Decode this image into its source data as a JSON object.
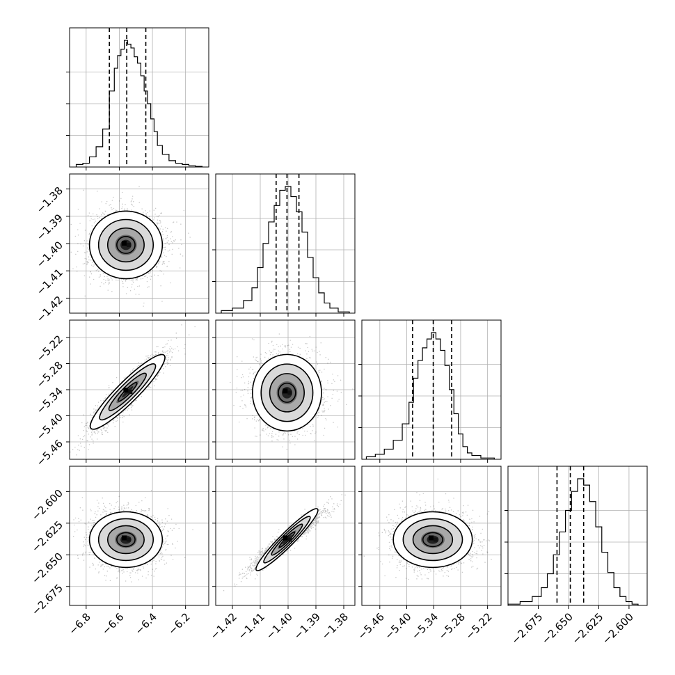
{
  "figure": {
    "type": "corner-plot",
    "panel_count": 10
  },
  "chart_data": [
    {
      "type": "histogram",
      "panel": "diag-0",
      "parameter_index": 0,
      "x": [
        -6.84,
        -6.8,
        -6.76,
        -6.72,
        -6.68,
        -6.64,
        -6.62,
        -6.6,
        -6.58,
        -6.56,
        -6.54,
        -6.52,
        -6.5,
        -6.48,
        -6.46,
        -6.44,
        -6.42,
        -6.4,
        -6.38,
        -6.36,
        -6.32,
        -6.28,
        -6.24,
        -6.2,
        -6.16,
        -6.12
      ],
      "values": [
        0.02,
        0.03,
        0.08,
        0.16,
        0.3,
        0.6,
        0.78,
        0.88,
        0.93,
        1.0,
        0.97,
        0.94,
        0.87,
        0.82,
        0.72,
        0.6,
        0.5,
        0.38,
        0.28,
        0.17,
        0.1,
        0.05,
        0.03,
        0.02,
        0.01,
        0.005
      ],
      "xlim": [
        -6.9,
        -6.06
      ],
      "quantiles": [
        -6.66,
        -6.555,
        -6.44
      ],
      "grid": true
    },
    {
      "type": "histogram",
      "panel": "diag-1",
      "parameter_index": 1,
      "x": [
        -1.422,
        -1.418,
        -1.414,
        -1.412,
        -1.41,
        -1.408,
        -1.406,
        -1.404,
        -1.402,
        -1.4,
        -1.398,
        -1.396,
        -1.394,
        -1.392,
        -1.39,
        -1.388,
        -1.386,
        -1.384,
        -1.38
      ],
      "values": [
        0.02,
        0.04,
        0.1,
        0.2,
        0.36,
        0.55,
        0.72,
        0.85,
        0.97,
        1.0,
        0.92,
        0.8,
        0.64,
        0.44,
        0.28,
        0.16,
        0.08,
        0.04,
        0.01
      ],
      "xlim": [
        -1.426,
        -1.376
      ],
      "quantiles": [
        -1.4043,
        -1.4004,
        -1.3961
      ],
      "grid": true
    },
    {
      "type": "histogram",
      "panel": "diag-2",
      "parameter_index": 2,
      "x": [
        -5.48,
        -5.46,
        -5.44,
        -5.42,
        -5.4,
        -5.39,
        -5.38,
        -5.37,
        -5.36,
        -5.35,
        -5.34,
        -5.33,
        -5.32,
        -5.31,
        -5.3,
        -5.29,
        -5.28,
        -5.27,
        -5.26,
        -5.25,
        -5.22
      ],
      "values": [
        0.02,
        0.04,
        0.08,
        0.15,
        0.28,
        0.45,
        0.64,
        0.78,
        0.88,
        0.95,
        1.0,
        0.95,
        0.86,
        0.74,
        0.55,
        0.36,
        0.2,
        0.1,
        0.05,
        0.03,
        0.01
      ],
      "xlim": [
        -5.5,
        -5.19
      ],
      "quantiles": [
        -5.387,
        -5.341,
        -5.3
      ],
      "grid": true
    },
    {
      "type": "histogram",
      "panel": "diag-3",
      "parameter_index": 3,
      "x": [
        -2.695,
        -2.685,
        -2.675,
        -2.67,
        -2.665,
        -2.66,
        -2.655,
        -2.65,
        -2.645,
        -2.64,
        -2.635,
        -2.63,
        -2.625,
        -2.62,
        -2.615,
        -2.61,
        -2.605,
        -2.6,
        -2.595
      ],
      "values": [
        0.01,
        0.03,
        0.07,
        0.14,
        0.25,
        0.4,
        0.58,
        0.75,
        0.9,
        1.0,
        0.95,
        0.82,
        0.62,
        0.42,
        0.26,
        0.14,
        0.07,
        0.03,
        0.01
      ],
      "xlim": [
        -2.7,
        -2.585
      ],
      "quantiles": [
        -2.6595,
        -2.6485,
        -2.6375
      ],
      "grid": true
    },
    {
      "type": "scatter-density",
      "panel": "pair-1-0",
      "x_parameter": 0,
      "y_parameter": 1,
      "xlim": [
        -6.9,
        -6.06
      ],
      "ylim": [
        -1.4255,
        -1.3745
      ],
      "center": [
        -6.56,
        -1.4005
      ],
      "sigma": [
        0.11,
        0.0062
      ],
      "correlation": 0.0,
      "contour_levels": [
        0.5,
        1.0,
        1.5,
        2.0
      ],
      "grid": true
    },
    {
      "type": "scatter-density",
      "panel": "pair-2-0",
      "x_parameter": 0,
      "y_parameter": 2,
      "xlim": [
        -6.9,
        -6.06
      ],
      "ylim": [
        -5.5,
        -5.18
      ],
      "center": [
        -6.55,
        -5.345
      ],
      "sigma": [
        0.11,
        0.044
      ],
      "correlation": 0.92,
      "contour_levels": [
        0.5,
        1.0,
        1.5,
        2.0
      ],
      "grid": true
    },
    {
      "type": "scatter-density",
      "panel": "pair-2-1",
      "x_parameter": 1,
      "y_parameter": 2,
      "xlim": [
        -1.426,
        -1.376
      ],
      "ylim": [
        -5.5,
        -5.18
      ],
      "center": [
        -1.4004,
        -5.347
      ],
      "sigma": [
        0.0062,
        0.044
      ],
      "correlation": 0.0,
      "contour_levels": [
        0.5,
        1.0,
        1.5,
        2.0
      ],
      "grid": true
    },
    {
      "type": "scatter-density",
      "panel": "pair-3-0",
      "x_parameter": 0,
      "y_parameter": 3,
      "xlim": [
        -6.9,
        -6.06
      ],
      "ylim": [
        -2.69,
        -2.58
      ],
      "center": [
        -6.56,
        -2.638
      ],
      "sigma": [
        0.11,
        0.011
      ],
      "correlation": 0.0,
      "contour_levels": [
        0.5,
        1.0,
        1.5,
        2.0
      ],
      "grid": true
    },
    {
      "type": "scatter-density",
      "panel": "pair-3-1",
      "x_parameter": 1,
      "y_parameter": 3,
      "xlim": [
        -1.426,
        -1.376
      ],
      "ylim": [
        -2.69,
        -2.58
      ],
      "center": [
        -1.4004,
        -2.638
      ],
      "sigma": [
        0.0062,
        0.011
      ],
      "correlation": 0.95,
      "contour_levels": [
        0.5,
        1.0,
        1.5,
        2.0
      ],
      "grid": true
    },
    {
      "type": "scatter-density",
      "panel": "pair-3-2",
      "x_parameter": 2,
      "y_parameter": 3,
      "xlim": [
        -5.5,
        -5.19
      ],
      "ylim": [
        -2.69,
        -2.58
      ],
      "center": [
        -5.342,
        -2.638
      ],
      "sigma": [
        0.044,
        0.011
      ],
      "correlation": 0.0,
      "contour_levels": [
        0.5,
        1.0,
        1.5,
        2.0
      ],
      "grid": true
    }
  ],
  "axes": {
    "x": [
      {
        "ticks": [
          -6.8,
          -6.6,
          -6.4,
          -6.2
        ],
        "labels": [
          "−6.8",
          "−6.6",
          "−6.4",
          "−6.2"
        ]
      },
      {
        "ticks": [
          -1.42,
          -1.41,
          -1.4,
          -1.39,
          -1.38
        ],
        "labels": [
          "−1.42",
          "−1.41",
          "−1.40",
          "−1.39",
          "−1.38"
        ]
      },
      {
        "ticks": [
          -5.46,
          -5.4,
          -5.34,
          -5.28,
          -5.22
        ],
        "labels": [
          "−5.46",
          "−5.40",
          "−5.34",
          "−5.28",
          "−5.22"
        ]
      },
      {
        "ticks": [
          -2.675,
          -2.65,
          -2.625,
          -2.6
        ],
        "labels": [
          "−2.675",
          "−2.650",
          "−2.625",
          "−2.600"
        ]
      }
    ],
    "y": [
      null,
      {
        "ticks": [
          -1.38,
          -1.39,
          -1.4,
          -1.41,
          -1.42
        ],
        "labels": [
          "−1.38",
          "−1.39",
          "−1.40",
          "−1.41",
          "−1.42"
        ]
      },
      {
        "ticks": [
          -5.22,
          -5.28,
          -5.34,
          -5.4,
          -5.46
        ],
        "labels": [
          "−5.22",
          "−5.28",
          "−5.34",
          "−5.40",
          "−5.46"
        ]
      },
      {
        "ticks": [
          -2.6,
          -2.625,
          -2.65,
          -2.675
        ],
        "labels": [
          "−2.600",
          "−2.625",
          "−2.650",
          "−2.675"
        ]
      }
    ]
  }
}
